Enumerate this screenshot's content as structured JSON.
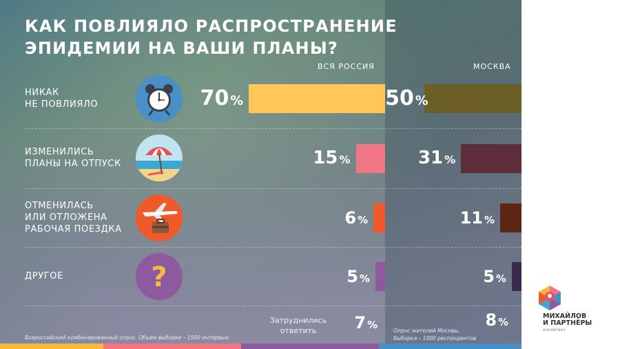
{
  "title": {
    "line1": "КАК ПОВЛИЯЛО РАСПРОСТРАНЕНИЕ",
    "line2": "ЭПИДЕМИИ НА ВАШИ ПЛАНЫ?"
  },
  "chart_data": {
    "type": "bar",
    "orientation": "horizontal",
    "categories": [
      "НИКАК\nНЕ ПОВЛИЯЛО",
      "ИЗМЕНИЛИСЬ\nПЛАНЫ НА ОТПУСК",
      "ОТМЕНИЛАСЬ\nИЛИ ОТЛОЖЕНА\nРАБОЧАЯ ПОЕЗДКА",
      "ДРУГОЕ"
    ],
    "series": [
      {
        "name": "ВСЯ РОССИЯ",
        "values": [
          70,
          15,
          6,
          5
        ],
        "colors": [
          "#ffc658",
          "#f07683",
          "#f05a2a",
          "#8e5a9f"
        ]
      },
      {
        "name": "МОСКВА",
        "values": [
          50,
          31,
          11,
          5
        ],
        "colors": [
          "#6b5f26",
          "#5e2c3a",
          "#5e2614",
          "#3b2a4e"
        ]
      }
    ],
    "value_suffix": "%",
    "dont_know": {
      "label": "Затруднились\nответить",
      "values": [
        7,
        8
      ]
    }
  },
  "icons": [
    "alarm-clock-icon",
    "beach-umbrella-icon",
    "airplane-suitcase-icon",
    "question-mark-icon"
  ],
  "notes": {
    "russia": "Всероссийский комбинированный опрос. Объем выборки – 1500 интервью.",
    "moscow": "Опрос жителей Москвы.\nВыборка – 1000 респондентов"
  },
  "logo": {
    "name": "МИХАЙЛОВ\nИ ПАРТНЁРЫ",
    "sub": "АНАЛИТИКА"
  }
}
